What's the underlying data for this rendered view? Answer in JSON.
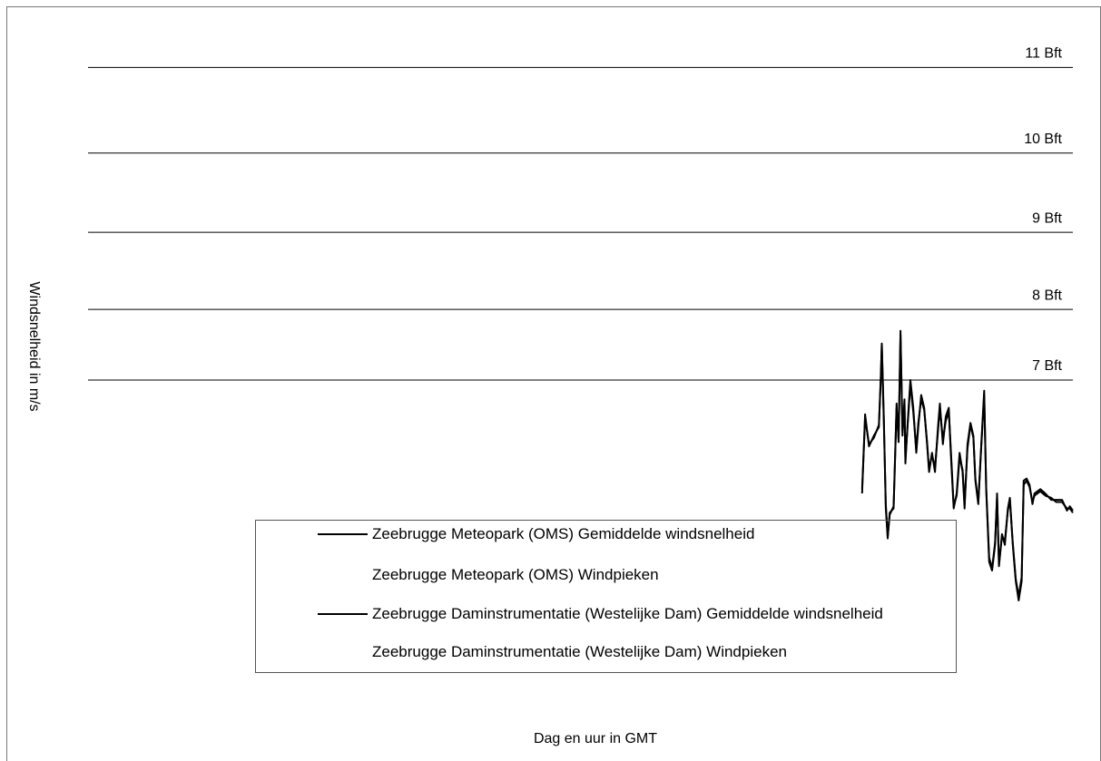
{
  "chart_data": {
    "type": "line",
    "y_label": "Windsnelheid in m/s",
    "x_label": "Dag en uur in GMT",
    "xlim": [
      0,
      100
    ],
    "ylim": [
      0,
      31
    ],
    "reference_lines": [
      {
        "value": 13.9,
        "label": "7 Bft"
      },
      {
        "value": 17.2,
        "label": "8 Bft"
      },
      {
        "value": 20.8,
        "label": "9 Bft"
      },
      {
        "value": 24.5,
        "label": "10 Bft"
      },
      {
        "value": 28.5,
        "label": "11 Bft"
      }
    ],
    "x": [
      78.6,
      78.9,
      79.3,
      79.8,
      80.3,
      80.5,
      80.6,
      80.8,
      81.0,
      81.2,
      81.4,
      81.8,
      81.9,
      82.1,
      82.3,
      82.5,
      82.7,
      82.9,
      83.0,
      83.2,
      83.5,
      83.8,
      84.1,
      84.3,
      84.6,
      84.9,
      85.2,
      85.4,
      85.7,
      86.0,
      86.3,
      86.5,
      86.8,
      87.1,
      87.4,
      87.6,
      87.9,
      88.2,
      88.5,
      88.8,
      89.0,
      89.3,
      89.6,
      89.9,
      90.1,
      90.4,
      90.7,
      91.0,
      91.2,
      91.5,
      91.8,
      92.1,
      92.3,
      92.5,
      92.8,
      93.1,
      93.4,
      93.6,
      93.9,
      94.2,
      94.5,
      94.8,
      95.0,
      95.3,
      95.6,
      95.9,
      96.1,
      96.7,
      97.2,
      97.8,
      98.3,
      98.9,
      99.4,
      99.7,
      100.0
    ],
    "series": [
      {
        "name": "Zeebrugge Meteopark (OMS) Gemiddelde windsnelheid",
        "color": "#000000",
        "values": [
          8.6,
          12.3,
          10.8,
          11.3,
          11.7,
          14.1,
          15.6,
          12.2,
          7.9,
          6.5,
          7.7,
          7.9,
          9.6,
          12.6,
          11.1,
          16.2,
          11.3,
          13.0,
          10.0,
          11.7,
          13.9,
          12.6,
          10.5,
          11.7,
          13.2,
          12.6,
          10.9,
          9.6,
          10.5,
          9.6,
          11.7,
          12.8,
          10.9,
          12.2,
          12.6,
          10.5,
          7.9,
          8.6,
          10.5,
          9.6,
          7.9,
          10.9,
          11.9,
          11.3,
          9.2,
          8.1,
          10.9,
          13.4,
          8.8,
          5.4,
          5.0,
          6.2,
          8.6,
          5.2,
          6.7,
          6.2,
          7.9,
          8.4,
          6.2,
          4.5,
          3.6,
          4.5,
          9.2,
          9.3,
          9.0,
          8.1,
          8.6,
          8.8,
          8.6,
          8.3,
          8.3,
          8.3,
          7.8,
          8.0,
          7.8
        ]
      },
      {
        "name": "Zeebrugge Meteopark (OMS) Windpieken"
      },
      {
        "name": "Zeebrugge Daminstrumentatie (Westelijke Dam) Gemiddelde windsnelheid",
        "color": "#000000",
        "values": [
          8.8,
          12.1,
          10.9,
          11.2,
          11.8,
          13.9,
          15.5,
          12.0,
          8.1,
          6.6,
          7.6,
          8.0,
          9.4,
          12.8,
          11.0,
          16.0,
          11.5,
          12.8,
          10.2,
          11.6,
          13.7,
          12.4,
          10.6,
          11.9,
          13.0,
          12.5,
          11.0,
          9.7,
          10.4,
          9.8,
          11.5,
          12.6,
          11.1,
          12.0,
          12.4,
          10.7,
          8.0,
          8.5,
          10.3,
          9.7,
          8.1,
          10.7,
          11.8,
          11.2,
          9.3,
          8.2,
          10.8,
          13.2,
          8.9,
          5.6,
          5.1,
          6.3,
          8.4,
          5.3,
          6.6,
          6.4,
          7.8,
          8.3,
          6.3,
          4.6,
          3.8,
          4.7,
          9.0,
          9.2,
          8.9,
          8.2,
          8.5,
          8.7,
          8.5,
          8.4,
          8.2,
          8.2,
          7.9,
          7.9,
          7.7
        ]
      },
      {
        "name": "Zeebrugge Daminstrumentatie (Westelijke Dam) Windpieken"
      }
    ]
  }
}
